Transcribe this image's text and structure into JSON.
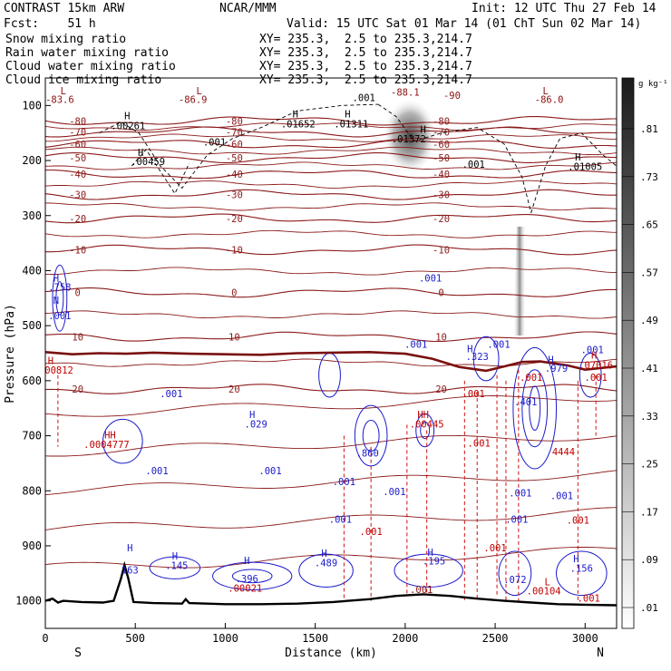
{
  "header": {
    "line1_left": "CONTRAST 15km ARW",
    "line1_center": "NCAR/MMM",
    "line1_right": "Init: 12 UTC Thu 27 Feb 14",
    "fcst": "Fcst:    51 h",
    "valid": "Valid: 15 UTC Sat 01 Mar 14 (01 ChT Sun 02 Mar 14)",
    "fields": [
      {
        "name": "Snow mixing ratio",
        "color": "#000000",
        "xy": "XY= 235.3,  2.5 to 235.3,214.7"
      },
      {
        "name": "Rain water mixing ratio",
        "color": "#c00000",
        "xy": "XY= 235.3,  2.5 to 235.3,214.7"
      },
      {
        "name": "Cloud water mixing ratio",
        "color": "#1a1acc",
        "xy": "XY= 235.3,  2.5 to 235.3,214.7"
      },
      {
        "name": "Cloud ice mixing ratio",
        "color": "#000000",
        "xy": "XY= 235.3,  2.5 to 235.3,214.7"
      }
    ]
  },
  "colorbar": {
    "unit": "g kg⁻¹",
    "ticks": [
      ".81",
      ".73",
      ".65",
      ".57",
      ".49",
      ".41",
      ".33",
      ".25",
      ".17",
      ".09",
      ".01"
    ]
  },
  "chart_data": {
    "type": "contour",
    "xlabel": "Distance (km)",
    "ylabel": "Pressure (hPa)",
    "x_ticks": [
      0,
      500,
      1000,
      1500,
      2000,
      2500,
      3000
    ],
    "y_ticks": [
      100,
      200,
      300,
      400,
      500,
      600,
      700,
      800,
      900,
      1000
    ],
    "xlim": [
      0,
      3175
    ],
    "ylim": [
      1050,
      50
    ],
    "left_label": "S",
    "right_label": "N",
    "temperature_contours": [
      {
        "label": "-80",
        "p": 128
      },
      {
        "label": "-70",
        "p": 148
      },
      {
        "label": "-60",
        "p": 170
      },
      {
        "label": "-50",
        "p": 195
      },
      {
        "label": "-40",
        "p": 225
      },
      {
        "label": "-30",
        "p": 262
      },
      {
        "label": "-20",
        "p": 305
      },
      {
        "label": "-10",
        "p": 362
      },
      {
        "label": "0",
        "p": 440
      },
      {
        "label": "10",
        "p": 520
      },
      {
        "label": "20",
        "p": 615
      }
    ],
    "freezing_level": [
      [
        0,
        548
      ],
      [
        150,
        552
      ],
      [
        300,
        550
      ],
      [
        450,
        551
      ],
      [
        600,
        549
      ],
      [
        800,
        551
      ],
      [
        1000,
        552
      ],
      [
        1200,
        553
      ],
      [
        1400,
        550
      ],
      [
        1600,
        549
      ],
      [
        1800,
        548
      ],
      [
        2000,
        551
      ],
      [
        2150,
        560
      ],
      [
        2300,
        575
      ],
      [
        2450,
        582
      ],
      [
        2550,
        574
      ],
      [
        2650,
        566
      ],
      [
        2750,
        565
      ],
      [
        2900,
        572
      ],
      [
        3000,
        580
      ],
      [
        3175,
        574
      ]
    ],
    "terrain": [
      [
        0,
        1000
      ],
      [
        40,
        996
      ],
      [
        70,
        1003
      ],
      [
        100,
        1000
      ],
      [
        200,
        1002
      ],
      [
        320,
        1003
      ],
      [
        380,
        1000
      ],
      [
        420,
        960
      ],
      [
        440,
        935
      ],
      [
        460,
        958
      ],
      [
        490,
        1002
      ],
      [
        600,
        1004
      ],
      [
        760,
        1005
      ],
      [
        780,
        997
      ],
      [
        800,
        1004
      ],
      [
        1000,
        1006
      ],
      [
        1200,
        1006
      ],
      [
        1400,
        1005
      ],
      [
        1600,
        1002
      ],
      [
        1800,
        997
      ],
      [
        1950,
        991
      ],
      [
        2100,
        988
      ],
      [
        2250,
        991
      ],
      [
        2400,
        996
      ],
      [
        2550,
        1000
      ],
      [
        2700,
        1003
      ],
      [
        2850,
        1006
      ],
      [
        3000,
        1007
      ],
      [
        3175,
        1008
      ]
    ],
    "annotations": [
      {
        "text": "L",
        "x": 100,
        "p": 80,
        "color": "#8b1010"
      },
      {
        "text": "-83.6",
        "x": 80,
        "p": 95,
        "color": "#8b1010"
      },
      {
        "text": "L",
        "x": 855,
        "p": 80,
        "color": "#8b1010"
      },
      {
        "text": "-86.9",
        "x": 820,
        "p": 95,
        "color": "#8b1010"
      },
      {
        "text": "-88.1",
        "x": 2000,
        "p": 82,
        "color": "#8b1010"
      },
      {
        "text": "-90",
        "x": 2260,
        "p": 88,
        "color": "#8b1010"
      },
      {
        "text": "L",
        "x": 2780,
        "p": 80,
        "color": "#8b1010"
      },
      {
        "text": "-86.0",
        "x": 2800,
        "p": 95,
        "color": "#8b1010"
      },
      {
        "text": "H",
        "x": 455,
        "p": 125,
        "color": "#000000"
      },
      {
        "text": ".00261",
        "x": 460,
        "p": 143,
        "color": "#000000"
      },
      {
        "text": "H",
        "x": 1390,
        "p": 122,
        "color": "#000000"
      },
      {
        "text": ".01652",
        "x": 1405,
        "p": 140,
        "color": "#000000"
      },
      {
        "text": "H",
        "x": 1680,
        "p": 122,
        "color": "#000000"
      },
      {
        "text": ".01311",
        "x": 1700,
        "p": 140,
        "color": "#000000"
      },
      {
        "text": "H",
        "x": 2100,
        "p": 150,
        "color": "#000000"
      },
      {
        "text": ".01372",
        "x": 2020,
        "p": 167,
        "color": "#000000"
      },
      {
        "text": ".001",
        "x": 1770,
        "p": 92,
        "color": "#000000"
      },
      {
        "text": ".001",
        "x": 940,
        "p": 173,
        "color": "#000000"
      },
      {
        "text": "H",
        "x": 530,
        "p": 192,
        "color": "#000000"
      },
      {
        "text": ".00459",
        "x": 570,
        "p": 208,
        "color": "#000000"
      },
      {
        "text": ".001",
        "x": 2380,
        "p": 213,
        "color": "#000000"
      },
      {
        "text": "H",
        "x": 2960,
        "p": 200,
        "color": "#000000"
      },
      {
        "text": ".01005",
        "x": 3000,
        "p": 217,
        "color": "#000000"
      },
      {
        "text": "H",
        "x": 60,
        "p": 420,
        "color": "#1a1acc"
      },
      {
        "text": ".758",
        "x": 80,
        "p": 436,
        "color": "#1a1acc"
      },
      {
        "text": "N",
        "x": 60,
        "p": 460,
        "color": "#1a1acc"
      },
      {
        "text": ".001",
        "x": 80,
        "p": 488,
        "color": "#1a1acc"
      },
      {
        "text": ".001",
        "x": 2140,
        "p": 420,
        "color": "#1a1acc"
      },
      {
        "text": ".001",
        "x": 2060,
        "p": 540,
        "color": "#1a1acc"
      },
      {
        "text": ".001",
        "x": 2520,
        "p": 540,
        "color": "#1a1acc"
      },
      {
        "text": "H",
        "x": 2360,
        "p": 548,
        "color": "#1a1acc"
      },
      {
        "text": ".323",
        "x": 2400,
        "p": 562,
        "color": "#1a1acc"
      },
      {
        "text": "H",
        "x": 2810,
        "p": 568,
        "color": "#1a1acc"
      },
      {
        "text": ".979",
        "x": 2840,
        "p": 584,
        "color": "#1a1acc"
      },
      {
        "text": ".001",
        "x": 3040,
        "p": 550,
        "color": "#1a1acc"
      },
      {
        "text": "H",
        "x": 3050,
        "p": 560,
        "color": "#c00000"
      },
      {
        "text": ".07016",
        "x": 3060,
        "p": 578,
        "color": "#c00000"
      },
      {
        "text": ".001",
        "x": 3060,
        "p": 600,
        "color": "#c00000"
      },
      {
        "text": "H",
        "x": 30,
        "p": 570,
        "color": "#c00000"
      },
      {
        "text": ".00812",
        "x": 60,
        "p": 587,
        "color": "#c00000"
      },
      {
        "text": ".001",
        "x": 700,
        "p": 630,
        "color": "#1a1acc"
      },
      {
        "text": ".401",
        "x": 2670,
        "p": 645,
        "color": "#1a1acc"
      },
      {
        "text": ".001",
        "x": 2380,
        "p": 630,
        "color": "#c00000"
      },
      {
        "text": ".001",
        "x": 2700,
        "p": 600,
        "color": "#c00000"
      },
      {
        "text": "HH",
        "x": 2100,
        "p": 668,
        "color": "#c00000"
      },
      {
        "text": ".00445",
        "x": 2120,
        "p": 685,
        "color": "#c00000"
      },
      {
        "text": "H",
        "x": 1150,
        "p": 668,
        "color": "#1a1acc"
      },
      {
        "text": ".029",
        "x": 1170,
        "p": 685,
        "color": "#1a1acc"
      },
      {
        "text": "HH",
        "x": 360,
        "p": 705,
        "color": "#c00000"
      },
      {
        "text": ".0004777",
        "x": 340,
        "p": 722,
        "color": "#c00000"
      },
      {
        "text": ".860",
        "x": 1790,
        "p": 738,
        "color": "#1a1acc"
      },
      {
        "text": ".001",
        "x": 2410,
        "p": 720,
        "color": "#c00000"
      },
      {
        "text": ".001",
        "x": 620,
        "p": 770,
        "color": "#1a1acc"
      },
      {
        "text": ".001",
        "x": 1250,
        "p": 770,
        "color": "#1a1acc"
      },
      {
        "text": ".001",
        "x": 1660,
        "p": 790,
        "color": "#1a1acc"
      },
      {
        "text": "4444",
        "x": 2880,
        "p": 735,
        "color": "#c00000"
      },
      {
        "text": ".001",
        "x": 1940,
        "p": 808,
        "color": "#1a1acc"
      },
      {
        "text": ".001",
        "x": 2640,
        "p": 810,
        "color": "#1a1acc"
      },
      {
        "text": ".001",
        "x": 2870,
        "p": 815,
        "color": "#1a1acc"
      },
      {
        "text": ".001",
        "x": 2620,
        "p": 858,
        "color": "#1a1acc"
      },
      {
        "text": ".001",
        "x": 1640,
        "p": 858,
        "color": "#1a1acc"
      },
      {
        "text": ".001",
        "x": 2960,
        "p": 860,
        "color": "#c00000"
      },
      {
        "text": ".001",
        "x": 1810,
        "p": 880,
        "color": "#c00000"
      },
      {
        "text": ".001",
        "x": 2500,
        "p": 910,
        "color": "#c00000"
      },
      {
        "text": "H",
        "x": 2140,
        "p": 918,
        "color": "#1a1acc"
      },
      {
        "text": ".195",
        "x": 2160,
        "p": 934,
        "color": "#1a1acc"
      },
      {
        "text": "H",
        "x": 470,
        "p": 910,
        "color": "#1a1acc"
      },
      {
        "text": "163",
        "x": 470,
        "p": 950,
        "color": "#1a1acc"
      },
      {
        "text": "H",
        "x": 720,
        "p": 925,
        "color": "#1a1acc"
      },
      {
        "text": ".145",
        "x": 730,
        "p": 942,
        "color": "#1a1acc"
      },
      {
        "text": "H",
        "x": 1120,
        "p": 933,
        "color": "#1a1acc"
      },
      {
        "text": ".396",
        "x": 1120,
        "p": 966,
        "color": "#1a1acc"
      },
      {
        "text": ".00021",
        "x": 1110,
        "p": 983,
        "color": "#c00000"
      },
      {
        "text": "H",
        "x": 1550,
        "p": 920,
        "color": "#1a1acc"
      },
      {
        "text": ".489",
        "x": 1560,
        "p": 937,
        "color": "#1a1acc"
      },
      {
        "text": ".072",
        "x": 2610,
        "p": 968,
        "color": "#1a1acc"
      },
      {
        "text": "H",
        "x": 2950,
        "p": 930,
        "color": "#1a1acc"
      },
      {
        "text": ".156",
        "x": 2980,
        "p": 947,
        "color": "#1a1acc"
      },
      {
        "text": ".001",
        "x": 2090,
        "p": 986,
        "color": "#8b1010"
      },
      {
        "text": "L",
        "x": 2790,
        "p": 972,
        "color": "#c00000"
      },
      {
        "text": ".00104",
        "x": 2770,
        "p": 988,
        "color": "#c00000"
      },
      {
        "text": ".001",
        "x": 3020,
        "p": 1001,
        "color": "#c00000"
      }
    ]
  }
}
